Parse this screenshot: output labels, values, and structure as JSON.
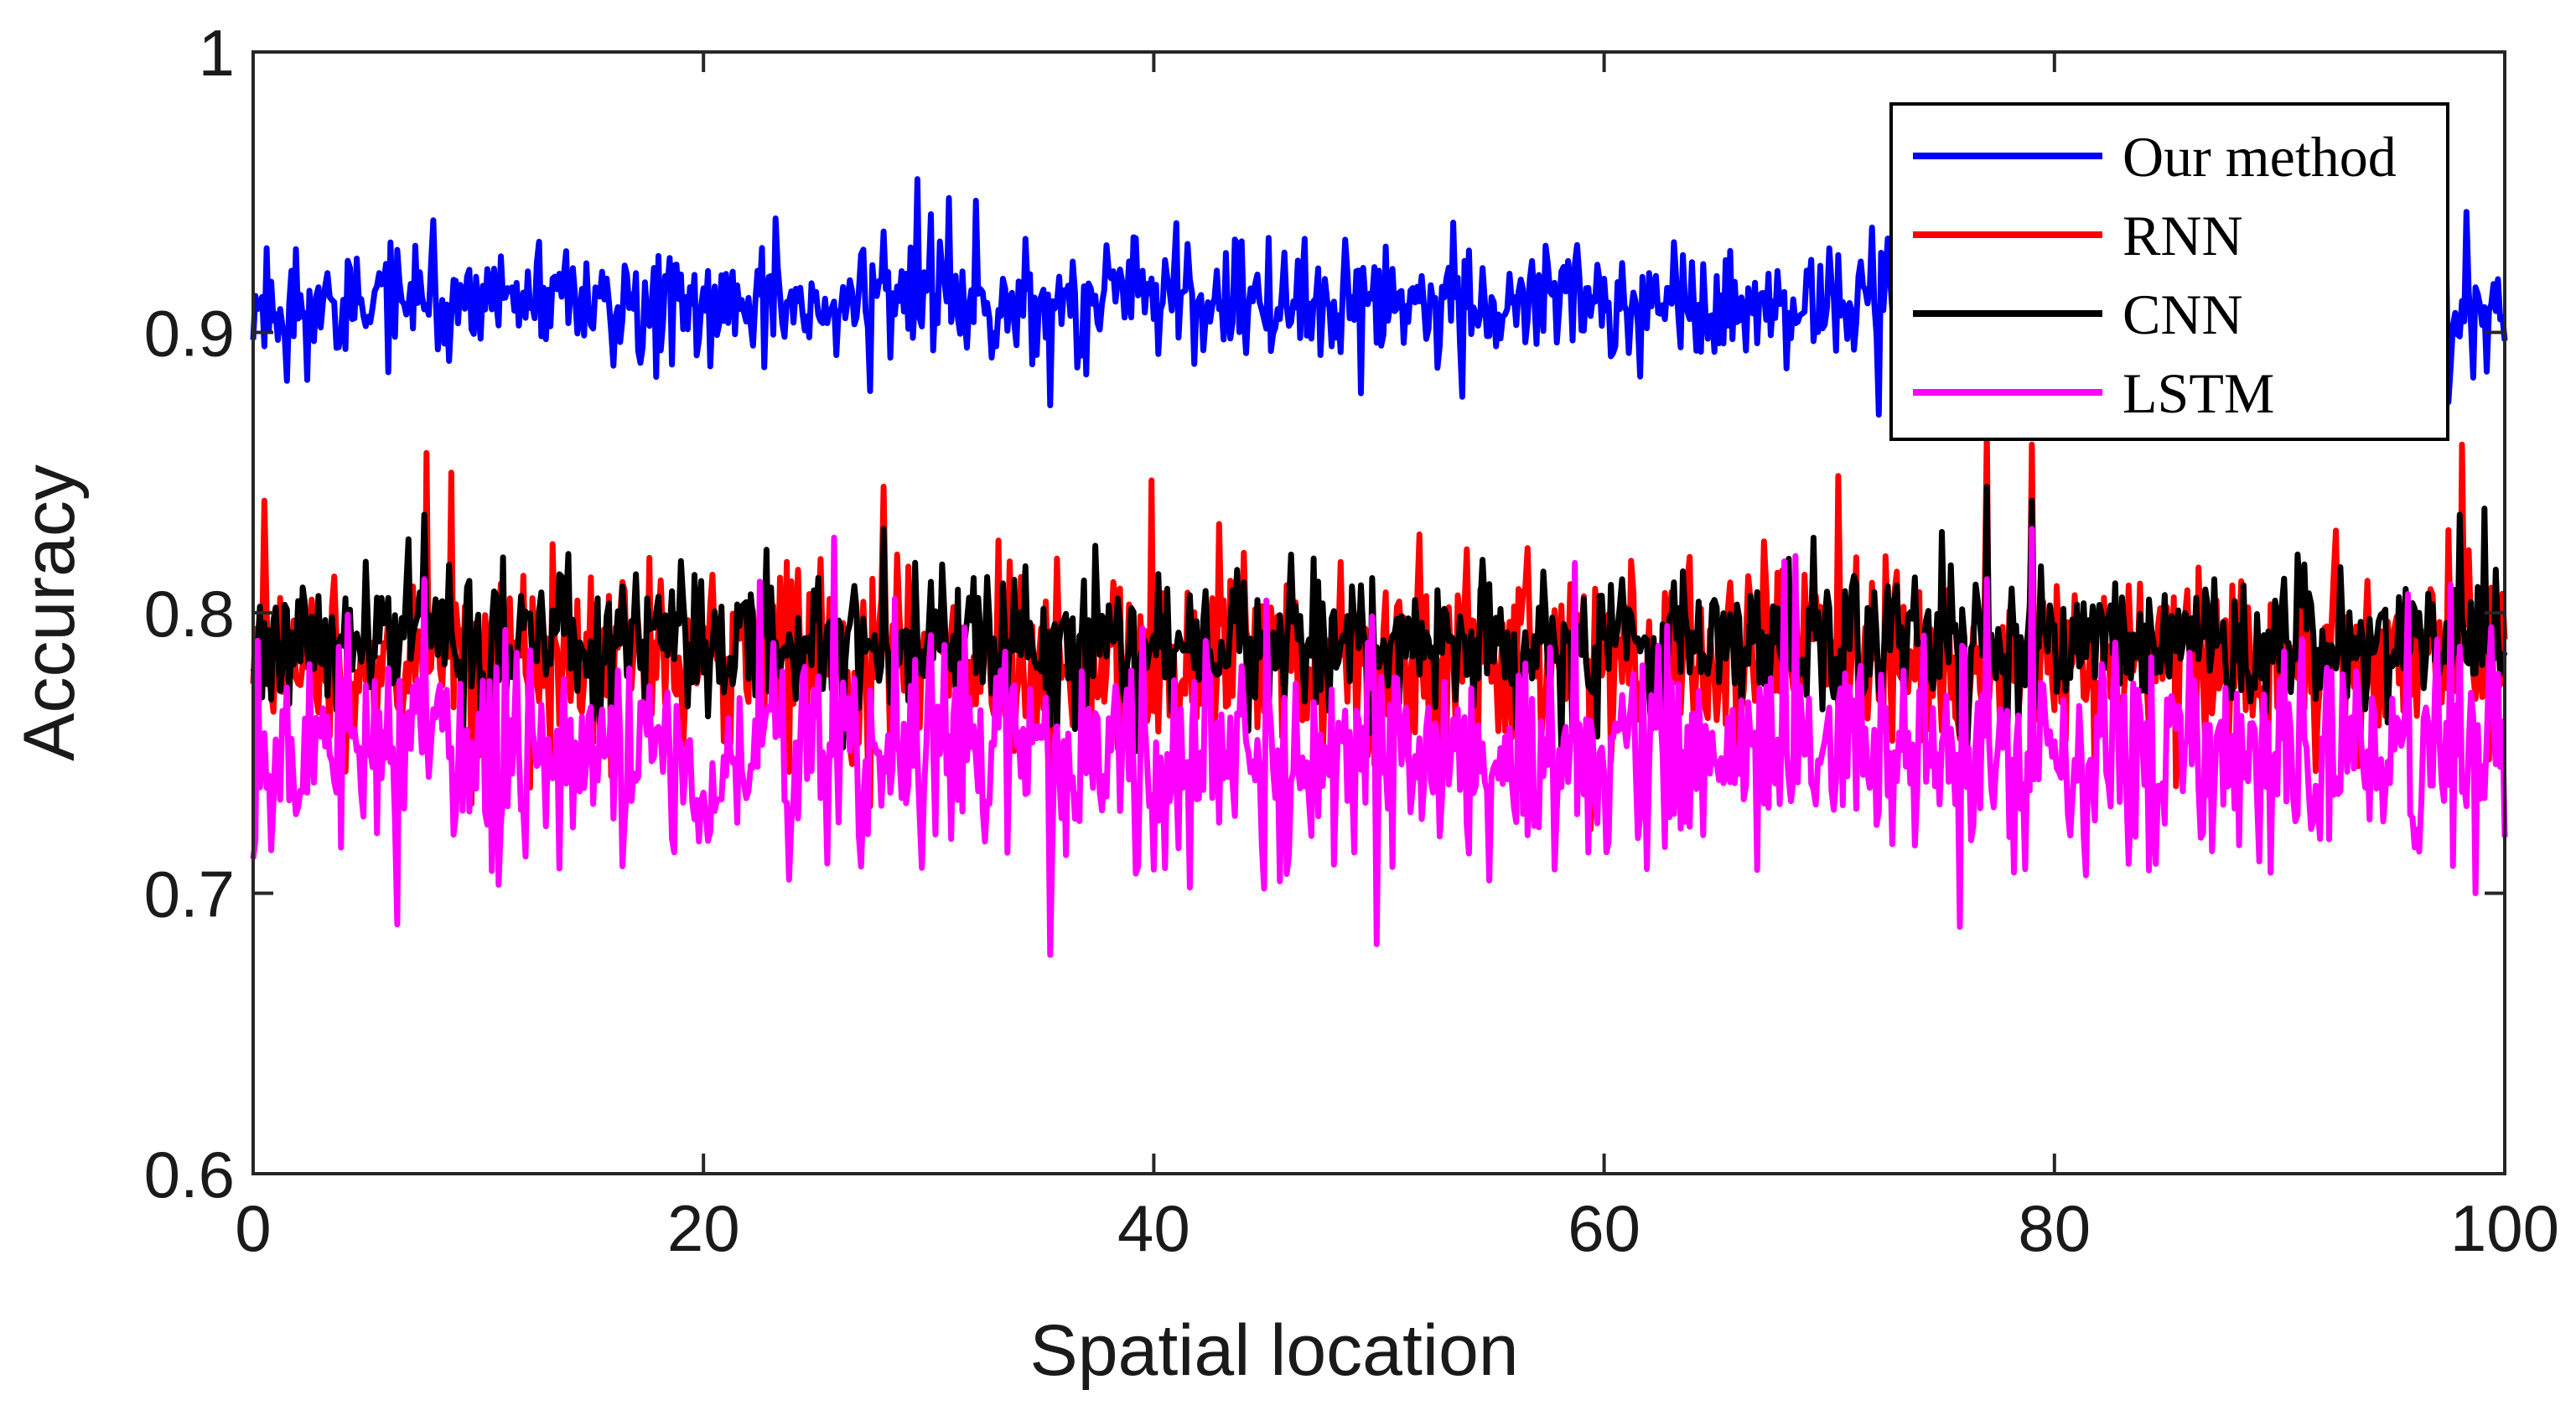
{
  "chart_data": {
    "type": "line",
    "title": "",
    "xlabel": "Spatial location",
    "ylabel": "Accuracy",
    "xlim": [
      0,
      100
    ],
    "ylim": [
      0.6,
      1.0
    ],
    "x_ticks": [
      0,
      20,
      40,
      60,
      80,
      100
    ],
    "y_ticks": [
      0.6,
      0.7,
      0.8,
      0.9,
      1.0
    ],
    "x_tick_labels": [
      "0",
      "20",
      "40",
      "60",
      "80",
      "100"
    ],
    "y_tick_labels": [
      "0.6",
      "0.7",
      "0.8",
      "0.9",
      "1"
    ],
    "legend_position": "top-right",
    "x_start": 0,
    "x_step": 0.1,
    "series": [
      {
        "name": "Our method",
        "color": "#0000ff",
        "base": 0.91,
        "noise": 0.01,
        "seed": 11,
        "peaks": [
          [
            8,
            0.94
          ],
          [
            28,
            0.936
          ],
          [
            70,
            0.93
          ],
          [
            98.3,
            0.943
          ],
          [
            100,
            0.897
          ]
        ],
        "dips": [
          [
            35.4,
            0.874
          ],
          [
            37,
            0.885
          ],
          [
            99.2,
            0.886
          ]
        ]
      },
      {
        "name": "RNN",
        "color": "#ff0000",
        "base": 0.785,
        "noise": 0.016,
        "seed": 23,
        "peaks": [
          [
            0.5,
            0.84
          ],
          [
            7.7,
            0.857
          ],
          [
            8.8,
            0.85
          ],
          [
            28,
            0.845
          ],
          [
            77,
            0.865
          ],
          [
            79,
            0.86
          ],
          [
            98.1,
            0.86
          ]
        ],
        "dips": [
          [
            35.4,
            0.745
          ],
          [
            75.8,
            0.755
          ]
        ]
      },
      {
        "name": "CNN",
        "color": "#000000",
        "base": 0.79,
        "noise": 0.012,
        "seed": 37,
        "peaks": [
          [
            7.6,
            0.835
          ],
          [
            28,
            0.83
          ],
          [
            77,
            0.845
          ],
          [
            79,
            0.84
          ],
          [
            98,
            0.835
          ]
        ],
        "dips": [
          [
            35.4,
            0.76
          ]
        ]
      },
      {
        "name": "LSTM",
        "color": "#ff00ff",
        "base": 0.75,
        "noise": 0.018,
        "seed": 53,
        "peaks": [
          [
            0.2,
            0.79
          ],
          [
            7.6,
            0.812
          ],
          [
            28.5,
            0.805
          ],
          [
            77,
            0.812
          ],
          [
            79,
            0.83
          ],
          [
            97.6,
            0.81
          ]
        ],
        "dips": [
          [
            35.4,
            0.678
          ],
          [
            75.8,
            0.688
          ],
          [
            98.7,
            0.7
          ],
          [
            100,
            0.72
          ]
        ]
      }
    ],
    "points_per_series": 1001
  }
}
